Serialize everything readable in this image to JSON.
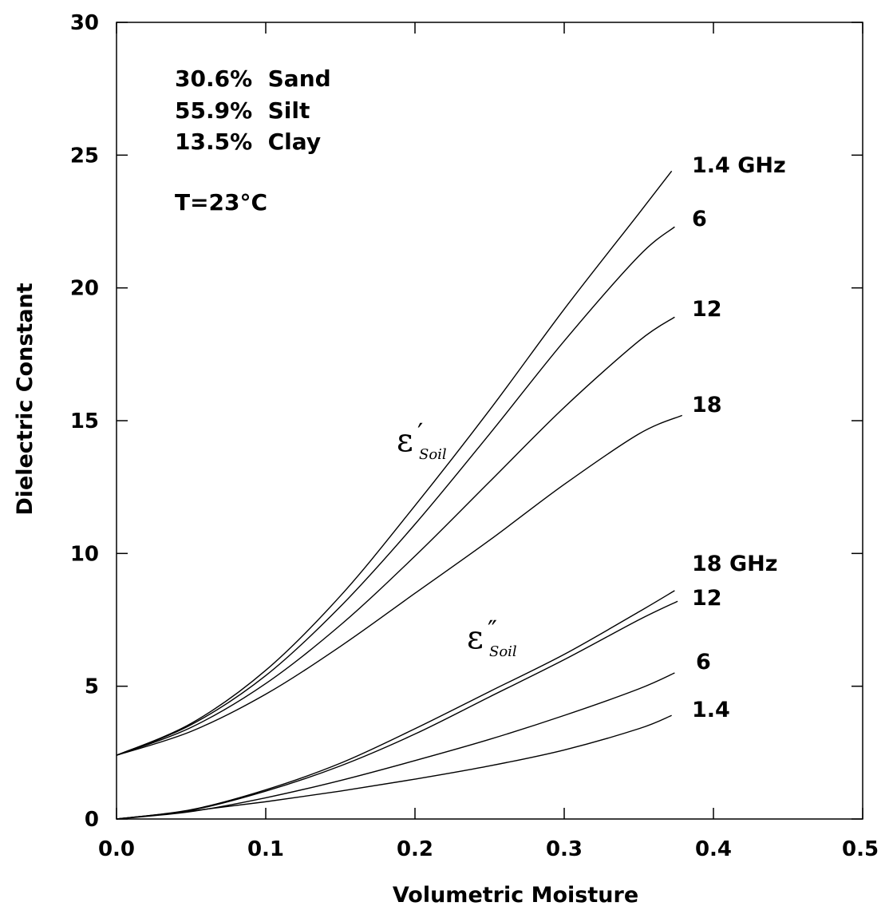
{
  "chart_data": {
    "type": "line",
    "xlabel": "Volumetric Moisture",
    "ylabel": "Dielectric Constant",
    "xlim": [
      0.0,
      0.5
    ],
    "ylim": [
      0,
      30
    ],
    "xticks": [
      "0.0",
      "0.1",
      "0.2",
      "0.3",
      "0.4",
      "0.5"
    ],
    "yticks": [
      "0",
      "5",
      "10",
      "15",
      "20",
      "25",
      "30"
    ],
    "grid": false,
    "annotations": {
      "composition": [
        "30.6%  Sand",
        "55.9%  Silt",
        "13.5%  Clay"
      ],
      "temperature": "T=23°C"
    },
    "groups": [
      {
        "symbol": "ε",
        "prime": "′",
        "subscript": "Soil",
        "series": [
          {
            "name": "1.4 GHz",
            "x": [
              0.0,
              0.05,
              0.1,
              0.15,
              0.2,
              0.25,
              0.3,
              0.35,
              0.372
            ],
            "values": [
              2.4,
              3.6,
              5.6,
              8.4,
              11.8,
              15.4,
              19.2,
              22.8,
              24.4
            ]
          },
          {
            "name": "6",
            "x": [
              0.0,
              0.05,
              0.1,
              0.15,
              0.2,
              0.25,
              0.3,
              0.35,
              0.374
            ],
            "values": [
              2.4,
              3.55,
              5.4,
              8.0,
              11.1,
              14.5,
              18.0,
              21.2,
              22.3
            ]
          },
          {
            "name": "12",
            "x": [
              0.0,
              0.05,
              0.1,
              0.15,
              0.2,
              0.25,
              0.3,
              0.35,
              0.374
            ],
            "values": [
              2.4,
              3.45,
              5.1,
              7.3,
              9.9,
              12.7,
              15.5,
              18.0,
              18.9
            ]
          },
          {
            "name": "18",
            "x": [
              0.0,
              0.05,
              0.1,
              0.15,
              0.2,
              0.25,
              0.3,
              0.35,
              0.379
            ],
            "values": [
              2.4,
              3.3,
              4.7,
              6.5,
              8.5,
              10.5,
              12.6,
              14.5,
              15.2
            ]
          }
        ]
      },
      {
        "symbol": "ε",
        "prime": "″",
        "subscript": "Soil",
        "series": [
          {
            "name": "18 GHz",
            "x": [
              0.0,
              0.05,
              0.1,
              0.15,
              0.2,
              0.25,
              0.3,
              0.35,
              0.374
            ],
            "values": [
              0.0,
              0.35,
              1.1,
              2.1,
              3.4,
              4.8,
              6.2,
              7.8,
              8.6
            ]
          },
          {
            "name": "12",
            "x": [
              0.0,
              0.05,
              0.1,
              0.15,
              0.2,
              0.25,
              0.3,
              0.35,
              0.376
            ],
            "values": [
              0.0,
              0.33,
              1.05,
              2.0,
              3.2,
              4.6,
              6.0,
              7.5,
              8.2
            ]
          },
          {
            "name": "6",
            "x": [
              0.0,
              0.05,
              0.1,
              0.15,
              0.2,
              0.25,
              0.3,
              0.35,
              0.374
            ],
            "values": [
              0.0,
              0.28,
              0.8,
              1.45,
              2.2,
              3.0,
              3.9,
              4.9,
              5.5
            ]
          },
          {
            "name": "1.4",
            "x": [
              0.0,
              0.05,
              0.1,
              0.15,
              0.2,
              0.25,
              0.3,
              0.35,
              0.372
            ],
            "values": [
              0.0,
              0.3,
              0.65,
              1.05,
              1.5,
              2.0,
              2.6,
              3.4,
              3.9
            ]
          }
        ]
      }
    ]
  }
}
